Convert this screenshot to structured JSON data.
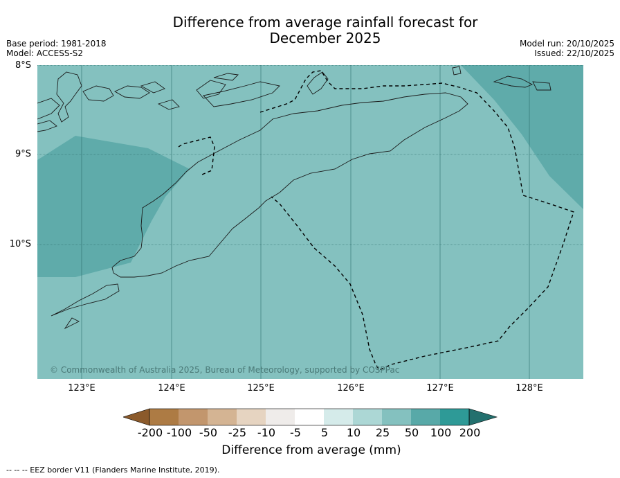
{
  "header": {
    "title_line1": "Difference from average rainfall forecast for",
    "title_line2": "December 2025",
    "base_period": "Base period: 1981-2018",
    "model": "Model: ACCESS-S2",
    "model_run": "Model run: 20/10/2025",
    "issued": "Issued: 22/10/2025"
  },
  "axes": {
    "lat_labels": [
      "8°S",
      "9°S",
      "10°S"
    ],
    "lon_labels": [
      "123°E",
      "124°E",
      "125°E",
      "126°E",
      "127°E",
      "128°E"
    ]
  },
  "map": {
    "copyright": "© Commonwealth of Australia 2025, Bureau of Meteorology, supported by COSPPac",
    "colors": {
      "base": "#84c1bf",
      "wetter": "#5fabaa",
      "coast": "#1a1a1a"
    }
  },
  "colorbar": {
    "ticks": [
      "-200",
      "-100",
      "-50",
      "-25",
      "-10",
      "-5",
      "5",
      "10",
      "25",
      "50",
      "100",
      "200"
    ],
    "colors": [
      "#8b5a2b",
      "#ad7b44",
      "#c2966d",
      "#d4b493",
      "#e6d4c1",
      "#efecea",
      "#ffffff",
      "#d5ebea",
      "#acd7d5",
      "#84c1bf",
      "#58a9a8",
      "#2e9a97",
      "#23706e"
    ],
    "label": "Difference from average (mm)"
  },
  "footer": {
    "legend": "--  --  -- EEZ border V11 (Flanders Marine Institute, 2019)."
  }
}
